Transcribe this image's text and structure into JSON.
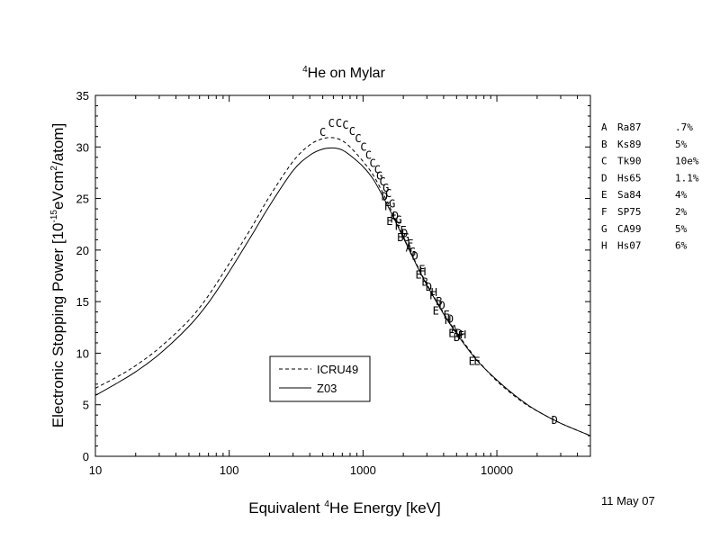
{
  "chart_data": {
    "type": "line",
    "title": {
      "superscript": "4",
      "text": "He on Mylar"
    },
    "xlabel": {
      "before": "Equivalent ",
      "superscript": "4",
      "after": "He Energy [keV]"
    },
    "ylabel": {
      "before": "Electronic Stopping Power [10",
      "superscript1": "-15",
      "middle": "eVcm",
      "superscript2": "2",
      "after": "/atom]"
    },
    "x_scale": "log",
    "xlim": [
      10,
      50000
    ],
    "ylim": [
      0,
      35
    ],
    "x_ticks": [
      {
        "value": 10,
        "label": "10"
      },
      {
        "value": 100,
        "label": "100"
      },
      {
        "value": 1000,
        "label": "1000"
      },
      {
        "value": 10000,
        "label": "10000"
      }
    ],
    "y_ticks": [
      {
        "value": 0,
        "label": "0"
      },
      {
        "value": 5,
        "label": "5"
      },
      {
        "value": 10,
        "label": "10"
      },
      {
        "value": 15,
        "label": "15"
      },
      {
        "value": 20,
        "label": "20"
      },
      {
        "value": 25,
        "label": "25"
      },
      {
        "value": 30,
        "label": "30"
      },
      {
        "value": 35,
        "label": "35"
      }
    ],
    "grid": false,
    "series": [
      {
        "name": "ICRU49",
        "style": "dashed",
        "color": "#000000",
        "x": [
          10,
          15,
          20,
          30,
          50,
          70,
          100,
          150,
          200,
          300,
          400,
          500,
          600,
          700,
          800,
          1000,
          1200,
          1500,
          2000,
          2500,
          3000,
          4000,
          5000,
          7000,
          10000,
          15000,
          20000,
          30000,
          50000
        ],
        "y": [
          6.6,
          7.8,
          8.8,
          10.5,
          13.2,
          15.6,
          18.7,
          22.4,
          25.2,
          28.6,
          30.2,
          30.8,
          30.9,
          30.6,
          30.0,
          28.6,
          27.2,
          24.8,
          21.3,
          18.7,
          16.7,
          13.9,
          12.0,
          9.5,
          7.3,
          5.4,
          4.4,
          3.2,
          2.0
        ]
      },
      {
        "name": "Z03",
        "style": "solid",
        "color": "#000000",
        "x": [
          10,
          15,
          20,
          30,
          50,
          70,
          100,
          150,
          200,
          300,
          400,
          500,
          600,
          700,
          800,
          1000,
          1200,
          1500,
          2000,
          2500,
          3000,
          4000,
          5000,
          7000,
          10000,
          15000,
          20000,
          30000,
          50000
        ],
        "y": [
          5.9,
          7.2,
          8.2,
          9.9,
          12.6,
          14.9,
          17.9,
          21.6,
          24.3,
          27.7,
          29.2,
          29.8,
          29.9,
          29.7,
          29.2,
          28.1,
          26.8,
          24.5,
          21.2,
          18.6,
          16.6,
          13.8,
          11.9,
          9.4,
          7.4,
          5.5,
          4.4,
          3.2,
          2.0
        ]
      }
    ],
    "points": [
      {
        "ds": "C",
        "x": 500,
        "y": 31.4
      },
      {
        "ds": "C",
        "x": 580,
        "y": 32.3
      },
      {
        "ds": "C",
        "x": 660,
        "y": 32.3
      },
      {
        "ds": "C",
        "x": 740,
        "y": 32.1
      },
      {
        "ds": "C",
        "x": 830,
        "y": 31.5
      },
      {
        "ds": "C",
        "x": 920,
        "y": 30.8
      },
      {
        "ds": "C",
        "x": 1010,
        "y": 30.0
      },
      {
        "ds": "C",
        "x": 1100,
        "y": 29.2
      },
      {
        "ds": "C",
        "x": 1180,
        "y": 28.4
      },
      {
        "ds": "C",
        "x": 1280,
        "y": 27.8
      },
      {
        "ds": "C",
        "x": 1400,
        "y": 26.6
      },
      {
        "ds": "C",
        "x": 1550,
        "y": 25.5
      },
      {
        "ds": "G",
        "x": 1330,
        "y": 27.2
      },
      {
        "ds": "G",
        "x": 1480,
        "y": 26.0
      },
      {
        "ds": "G",
        "x": 1650,
        "y": 24.5
      },
      {
        "ds": "G",
        "x": 1850,
        "y": 22.9
      },
      {
        "ds": "G",
        "x": 2100,
        "y": 21.2
      },
      {
        "ds": "G",
        "x": 2350,
        "y": 19.8
      },
      {
        "ds": "D",
        "x": 1450,
        "y": 25.2
      },
      {
        "ds": "D",
        "x": 1750,
        "y": 23.3
      },
      {
        "ds": "D",
        "x": 2050,
        "y": 21.6
      },
      {
        "ds": "D",
        "x": 2450,
        "y": 19.4
      },
      {
        "ds": "D",
        "x": 3100,
        "y": 16.4
      },
      {
        "ds": "D",
        "x": 3900,
        "y": 14.6
      },
      {
        "ds": "D",
        "x": 4500,
        "y": 13.3
      },
      {
        "ds": "D",
        "x": 5200,
        "y": 11.9
      },
      {
        "ds": "D",
        "x": 27000,
        "y": 3.5
      },
      {
        "ds": "F",
        "x": 1520,
        "y": 24.2
      },
      {
        "ds": "F",
        "x": 1680,
        "y": 23.0
      },
      {
        "ds": "F",
        "x": 1820,
        "y": 22.3
      },
      {
        "ds": "F",
        "x": 2250,
        "y": 20.6
      },
      {
        "ds": "F",
        "x": 2750,
        "y": 18.1
      },
      {
        "ds": "F",
        "x": 3300,
        "y": 15.6
      },
      {
        "ds": "F",
        "x": 4200,
        "y": 13.7
      },
      {
        "ds": "F",
        "x": 5400,
        "y": 11.7
      },
      {
        "ds": "E",
        "x": 1580,
        "y": 22.8
      },
      {
        "ds": "E",
        "x": 2000,
        "y": 21.9
      },
      {
        "ds": "E",
        "x": 2600,
        "y": 17.6
      },
      {
        "ds": "E",
        "x": 3500,
        "y": 14.1
      },
      {
        "ds": "E",
        "x": 4600,
        "y": 11.9
      },
      {
        "ds": "E",
        "x": 6500,
        "y": 9.2
      },
      {
        "ds": "E",
        "x": 7100,
        "y": 9.2
      },
      {
        "ds": "B",
        "x": 1900,
        "y": 21.2
      },
      {
        "ds": "B",
        "x": 2900,
        "y": 16.9
      },
      {
        "ds": "B",
        "x": 3700,
        "y": 15.0
      },
      {
        "ds": "B",
        "x": 5000,
        "y": 11.5
      },
      {
        "ds": "A",
        "x": 2200,
        "y": 20.2
      },
      {
        "ds": "A",
        "x": 4800,
        "y": 12.3
      },
      {
        "ds": "H",
        "x": 2800,
        "y": 17.9
      },
      {
        "ds": "H",
        "x": 3400,
        "y": 15.9
      },
      {
        "ds": "H",
        "x": 4300,
        "y": 13.2
      },
      {
        "ds": "H",
        "x": 5600,
        "y": 11.8
      }
    ],
    "legend_box": {
      "position": "lower-center",
      "entries": [
        {
          "label": "ICRU49",
          "style": "dashed"
        },
        {
          "label": "Z03",
          "style": "solid"
        }
      ]
    },
    "datasets_key": [
      {
        "letter": "A",
        "code": "Ra87",
        "error": ".7%"
      },
      {
        "letter": "B",
        "code": "Ks89",
        "error": "5%"
      },
      {
        "letter": "C",
        "code": "Tk90",
        "error": "10e%"
      },
      {
        "letter": "D",
        "code": "Hs65",
        "error": "1.1%"
      },
      {
        "letter": "E",
        "code": "Sa84",
        "error": "4%"
      },
      {
        "letter": "F",
        "code": "SP75",
        "error": "2%"
      },
      {
        "letter": "G",
        "code": "CA99",
        "error": "5%"
      },
      {
        "letter": "H",
        "code": "Hs07",
        "error": "6%"
      }
    ],
    "date": "11 May 07"
  }
}
